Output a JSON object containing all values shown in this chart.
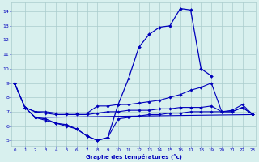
{
  "lines": [
    {
      "x": [
        0,
        1,
        2,
        3,
        4,
        5,
        6,
        7,
        8,
        9,
        10,
        11,
        12,
        13,
        14,
        15,
        16,
        17,
        18,
        19,
        20,
        21,
        22,
        23
      ],
      "y": [
        9.0,
        7.3,
        6.6,
        6.5,
        6.2,
        6.1,
        5.8,
        5.3,
        5.0,
        5.2,
        7.5,
        9.3,
        11.5,
        12.4,
        12.9,
        13.0,
        14.2,
        14.1,
        10.0,
        9.5,
        null,
        null,
        null,
        null
      ],
      "color": "#0000bb",
      "linewidth": 0.9,
      "marker": "D",
      "markersize": 2.0
    },
    {
      "x": [
        0,
        1,
        2,
        3,
        4,
        5,
        6,
        7,
        8,
        9,
        10,
        11,
        12,
        13,
        14,
        15,
        16,
        17,
        18,
        19,
        20,
        21,
        22,
        23
      ],
      "y": [
        9.0,
        7.3,
        7.0,
        7.0,
        6.9,
        6.9,
        6.9,
        6.9,
        7.4,
        7.4,
        7.5,
        7.5,
        7.6,
        7.7,
        7.8,
        8.0,
        8.2,
        8.5,
        8.7,
        9.0,
        7.0,
        7.1,
        7.5,
        6.8
      ],
      "color": "#0000bb",
      "linewidth": 0.8,
      "marker": "D",
      "markersize": 1.8
    },
    {
      "x": [
        0,
        1,
        2,
        3,
        4,
        5,
        6,
        7,
        8,
        9,
        10,
        11,
        12,
        13,
        14,
        15,
        16,
        17,
        18,
        19,
        20,
        21,
        22,
        23
      ],
      "y": [
        9.0,
        7.3,
        7.0,
        6.9,
        6.8,
        6.8,
        6.8,
        6.8,
        6.9,
        7.0,
        7.0,
        7.1,
        7.1,
        7.1,
        7.2,
        7.2,
        7.3,
        7.3,
        7.3,
        7.4,
        7.0,
        7.0,
        7.3,
        6.8
      ],
      "color": "#0000bb",
      "linewidth": 0.8,
      "marker": "D",
      "markersize": 1.8
    },
    {
      "x": [
        1,
        2,
        3,
        4,
        5,
        6,
        7,
        8,
        9,
        10,
        11,
        12,
        13,
        14,
        15,
        16,
        17,
        18,
        19,
        20,
        21,
        22,
        23
      ],
      "y": [
        7.3,
        6.6,
        6.4,
        6.2,
        6.0,
        5.8,
        5.3,
        5.0,
        5.2,
        6.5,
        6.6,
        6.7,
        6.8,
        6.8,
        6.9,
        6.9,
        7.0,
        7.0,
        7.0,
        7.0,
        7.0,
        7.3,
        6.8
      ],
      "color": "#0000bb",
      "linewidth": 0.8,
      "marker": "D",
      "markersize": 1.8
    },
    {
      "x": [
        2,
        23
      ],
      "y": [
        6.6,
        6.8
      ],
      "color": "#0000bb",
      "linewidth": 0.8,
      "marker": "D",
      "markersize": 1.8
    }
  ],
  "xlim": [
    -0.3,
    23.3
  ],
  "ylim": [
    4.6,
    14.6
  ],
  "yticks": [
    5,
    6,
    7,
    8,
    9,
    10,
    11,
    12,
    13,
    14
  ],
  "xticks": [
    0,
    1,
    2,
    3,
    4,
    5,
    6,
    7,
    8,
    9,
    10,
    11,
    12,
    13,
    14,
    15,
    16,
    17,
    18,
    19,
    20,
    21,
    22,
    23
  ],
  "xlabel": "Graphe des températures (°c)",
  "background_color": "#d8f0ee",
  "grid_color": "#aacccc",
  "tick_color": "#0000bb",
  "label_color": "#0000bb"
}
